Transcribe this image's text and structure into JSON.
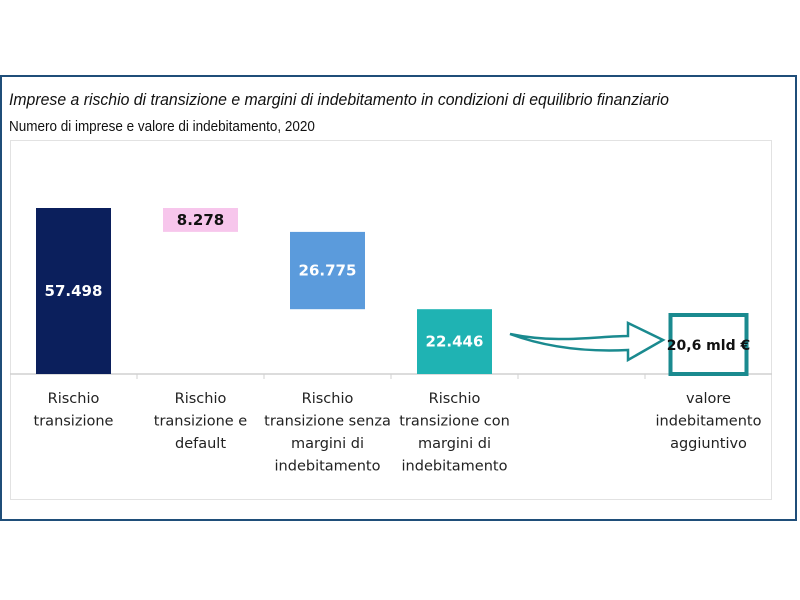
{
  "chart_data": {
    "type": "waterfall",
    "title": "Imprese a rischio di transizione e margini di indebitamento in condizioni di equilibrio finanziario",
    "subtitle": "Numero di imprese e valore di indebitamento, 2020",
    "categories": [
      [
        "Rischio",
        "transizione"
      ],
      [
        "Rischio",
        "transizione e",
        "default"
      ],
      [
        "Rischio",
        "transizione senza",
        "margini di",
        "indebitamento"
      ],
      [
        "Rischio",
        "transizione con",
        "margini di",
        "indebitamento"
      ],
      [],
      [
        "valore",
        "indebitamento",
        "aggiuntivo"
      ]
    ],
    "bars": [
      {
        "value": 57498,
        "label": "57.498",
        "kind": "total",
        "color": "#0b1f5c",
        "label_color": "#ffffff"
      },
      {
        "value": -8278,
        "label": "8.278",
        "kind": "decrease",
        "color": "#f7c6ec",
        "label_color": "#111111"
      },
      {
        "value": -26775,
        "label": "26.775",
        "kind": "decrease",
        "color": "#5b9bdc",
        "label_color": "#ffffff"
      },
      {
        "value": 22446,
        "label": "22.446",
        "kind": "total",
        "color": "#1fb3b3",
        "label_color": "#ffffff"
      }
    ],
    "result_box": {
      "label": "20,6 mld €",
      "border_color": "#1a8a8f"
    },
    "arrow_color": "#1a8a8f",
    "yaxis_visible": false,
    "grid": false
  }
}
